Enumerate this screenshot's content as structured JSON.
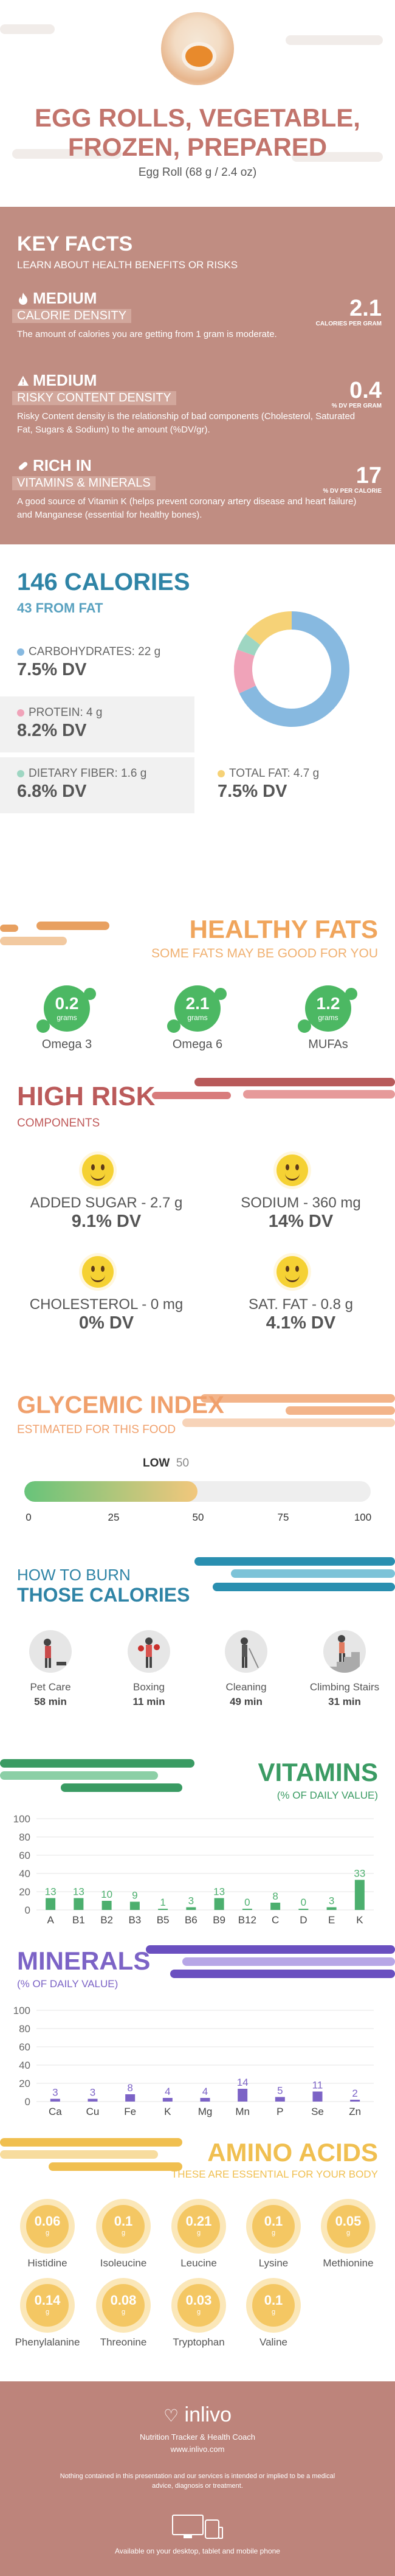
{
  "header": {
    "title_line1": "EGG ROLLS, VEGETABLE,",
    "title_line2": "FROZEN, PREPARED",
    "serving": "Egg Roll (68 g / 2.4 oz)"
  },
  "key_facts": {
    "title": "KEY FACTS",
    "subtitle": "LEARN ABOUT HEALTH BENEFITS OR RISKS",
    "items": [
      {
        "level": "MEDIUM",
        "label": "CALORIE DENSITY",
        "desc": "The amount of calories you are getting from 1 gram is moderate.",
        "value": "2.1",
        "unit": "CALORIES PER GRAM",
        "icon": "flame-icon"
      },
      {
        "level": "MEDIUM",
        "label": "RISKY CONTENT DENSITY",
        "desc": "Risky Content density is the relationship of bad components (Cholesterol, Saturated Fat, Sugars & Sodium) to the amount (%DV/gr).",
        "value": "0.4",
        "unit": "% DV PER GRAM",
        "icon": "warning-icon"
      },
      {
        "level": "RICH  IN",
        "label": "VITAMINS & MINERALS",
        "desc": "A good source of Vitamin K (helps prevent coronary artery disease and heart failure) and Manganese (essential for healthy bones).",
        "value": "17",
        "unit": "% DV PER CALORIE",
        "icon": "pill-icon"
      }
    ]
  },
  "calories": {
    "title": "146 CALORIES",
    "from_fat": "43 FROM FAT",
    "macros": [
      {
        "label": "CARBOHYDRATES: 22 g",
        "dv": "7.5% DV",
        "color": "#87b9e0"
      },
      {
        "label": "PROTEIN: 4 g",
        "dv": "8.2% DV",
        "color": "#f0a3b9"
      },
      {
        "label": "DIETARY FIBER: 1.6 g",
        "dv": "6.8% DV",
        "color": "#9ed6c2"
      },
      {
        "label": "TOTAL FAT: 4.7 g",
        "dv": "7.5% DV",
        "color": "#f6d277"
      }
    ]
  },
  "chart_data": [
    {
      "type": "pie",
      "title": "",
      "labels": [
        "Carbohydrates",
        "Protein",
        "Dietary Fiber",
        "Total Fat"
      ],
      "values": [
        22,
        4,
        1.6,
        4.7
      ],
      "colors": [
        "#87b9e0",
        "#f0a3b9",
        "#9ed6c2",
        "#f6d277"
      ]
    },
    {
      "type": "bar",
      "title": "VITAMINS",
      "categories": [
        "A",
        "B1",
        "B2",
        "B3",
        "B5",
        "B6",
        "B9",
        "B12",
        "C",
        "D",
        "E",
        "K"
      ],
      "values": [
        13,
        13,
        10,
        9,
        1,
        3,
        13,
        0,
        8,
        0,
        3,
        33
      ],
      "ylim": [
        0,
        100
      ],
      "yticks": [
        0,
        20,
        40,
        60,
        80,
        100
      ],
      "color": "#4caf6e"
    },
    {
      "type": "bar",
      "title": "MINERALS",
      "categories": [
        "Ca",
        "Cu",
        "Fe",
        "K",
        "Mg",
        "Mn",
        "P",
        "Se",
        "Zn"
      ],
      "values": [
        3,
        3,
        8,
        4,
        4,
        14,
        5,
        11,
        2
      ],
      "ylim": [
        0,
        100
      ],
      "yticks": [
        0,
        20,
        40,
        60,
        80,
        100
      ],
      "color": "#7c63c6"
    }
  ],
  "healthy_fats": {
    "title": "HEALTHY FATS",
    "subtitle": "SOME FATS MAY BE GOOD FOR YOU",
    "unit": "grams",
    "items": [
      {
        "value": "0.2",
        "name": "Omega 3"
      },
      {
        "value": "2.1",
        "name": "Omega 6"
      },
      {
        "value": "1.2",
        "name": "MUFAs"
      }
    ]
  },
  "high_risk": {
    "title": "HIGH RISK",
    "subtitle": "COMPONENTS",
    "items": [
      {
        "label": "ADDED SUGAR - 2.7 g",
        "dv": "9.1% DV"
      },
      {
        "label": "SODIUM - 360 mg",
        "dv": "14% DV"
      },
      {
        "label": "CHOLESTEROL - 0 mg",
        "dv": "0% DV"
      },
      {
        "label": "SAT. FAT - 0.8 g",
        "dv": "4.1% DV"
      }
    ]
  },
  "glycemic": {
    "title": "GLYCEMIC INDEX",
    "subtitle": "ESTIMATED FOR THIS FOOD",
    "level": "LOW",
    "value": 50,
    "value_text": "50",
    "ticks": [
      "0",
      "25",
      "50",
      "75",
      "100"
    ]
  },
  "burn": {
    "title1": "HOW TO BURN",
    "title2": "THOSE CALORIES",
    "activities": [
      {
        "label": "Pet Care",
        "minutes": "58 min",
        "icon": "dog-walking-icon"
      },
      {
        "label": "Boxing",
        "minutes": "11 min",
        "icon": "boxing-icon"
      },
      {
        "label": "Cleaning",
        "minutes": "49 min",
        "icon": "cleaning-icon"
      },
      {
        "label": "Climbing Stairs",
        "minutes": "31 min",
        "icon": "stairs-icon"
      }
    ]
  },
  "vitamins": {
    "title": "VITAMINS",
    "subtitle": "(% OF DAILY VALUE)"
  },
  "minerals": {
    "title": "MINERALS",
    "subtitle": "(% OF DAILY VALUE)"
  },
  "amino_acids": {
    "title": "AMINO ACIDS",
    "subtitle": "THESE ARE ESSENTIAL FOR YOUR BODY",
    "unit": "g",
    "items": [
      {
        "value": "0.06",
        "name": "Histidine"
      },
      {
        "value": "0.1",
        "name": "Isoleucine"
      },
      {
        "value": "0.21",
        "name": "Leucine"
      },
      {
        "value": "0.1",
        "name": "Lysine"
      },
      {
        "value": "0.05",
        "name": "Methionine"
      },
      {
        "value": "0.14",
        "name": "Phenylalanine"
      },
      {
        "value": "0.08",
        "name": "Threonine"
      },
      {
        "value": "0.03",
        "name": "Tryptophan"
      },
      {
        "value": "0.1",
        "name": "Valine"
      }
    ]
  },
  "footer": {
    "brand": "inlivo",
    "tagline": "Nutrition Tracker & Health Coach",
    "url": "www.inlivo.com",
    "disclaimer": "Nothing contained in this presentation and our services is intended or implied to be a medical advice, diagnosis or treatment.",
    "available": "Available on your desktop, tablet and mobile phone"
  }
}
